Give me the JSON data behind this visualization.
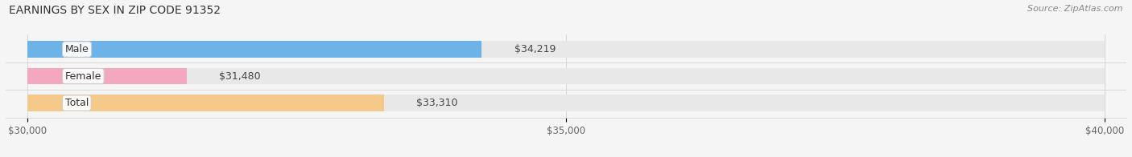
{
  "title": "EARNINGS BY SEX IN ZIP CODE 91352",
  "source": "Source: ZipAtlas.com",
  "categories": [
    "Male",
    "Female",
    "Total"
  ],
  "values": [
    34219,
    31480,
    33310
  ],
  "bar_colors": [
    "#6db3e8",
    "#f4a8c0",
    "#f5c989"
  ],
  "bar_bg_color": "#e8e8e8",
  "xlim": [
    30000,
    40000
  ],
  "xticks": [
    30000,
    35000,
    40000
  ],
  "xtick_labels": [
    "$30,000",
    "$35,000",
    "$40,000"
  ],
  "title_fontsize": 10,
  "source_fontsize": 8,
  "tick_fontsize": 8.5,
  "bar_label_fontsize": 9,
  "category_fontsize": 9,
  "background_color": "#f5f5f5",
  "bar_height": 0.62,
  "bar_spacing": 1.0,
  "label_tag_colors": [
    "#ddeeff",
    "#fde0ea",
    "#fde8c0"
  ],
  "label_tag_edge_colors": [
    "#aaccee",
    "#f0b0c0",
    "#e8c880"
  ]
}
